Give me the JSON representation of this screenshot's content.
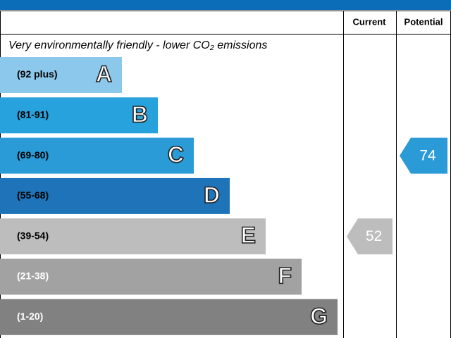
{
  "chart_data": {
    "type": "epc",
    "subtitle": "Very environmentally friendly - lower CO₂ emissions",
    "column_headers": [
      "Current",
      "Potential"
    ],
    "bands": [
      {
        "range": "(92 plus)",
        "letter": "A",
        "color": "#8cc8ec",
        "label_color": "#000000"
      },
      {
        "range": "(81-91)",
        "letter": "B",
        "color": "#28a2dc",
        "label_color": "#000000"
      },
      {
        "range": "(69-80)",
        "letter": "C",
        "color": "#2a9bd6",
        "label_color": "#000000"
      },
      {
        "range": "(55-68)",
        "letter": "D",
        "color": "#1f74b9",
        "label_color": "#000000"
      },
      {
        "range": "(39-54)",
        "letter": "E",
        "color": "#bdbdbd",
        "label_color": "#000000"
      },
      {
        "range": "(21-38)",
        "letter": "F",
        "color": "#a2a2a2",
        "label_color": "#ffffff"
      },
      {
        "range": "(1-20)",
        "letter": "G",
        "color": "#818181",
        "label_color": "#ffffff"
      }
    ],
    "current": {
      "value": 52,
      "color": "#bdbdbd"
    },
    "potential": {
      "value": 74,
      "color": "#2a9bd6"
    }
  }
}
